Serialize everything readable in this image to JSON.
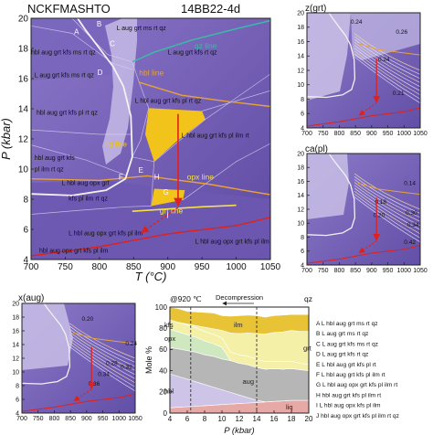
{
  "figure": {
    "system": "NCKFMASHTO",
    "sample": "14BB22-4d"
  },
  "colors": {
    "field_dark": "#6b57b0",
    "field_mid": "#7d68bf",
    "field_light": "#9b8bd0",
    "field_pale": "#c9bfe6",
    "liq_gold": "#f2c31a",
    "qz_line": "#3fb7a6",
    "hbl_line": "#e8a23a",
    "grt_line": "#f4e14a",
    "red": "#e0211b",
    "white_line": "#f2f2f2"
  },
  "chart_data": [
    {
      "type": "area",
      "name": "main",
      "xlabel": "T (°C)",
      "ylabel": "P (kbar)",
      "xlim": [
        700,
        1050
      ],
      "ylim": [
        4,
        20
      ],
      "xticks": [
        "700",
        "750",
        "800",
        "850",
        "900",
        "950",
        "1000",
        "1050"
      ],
      "yticks": [
        "4",
        "6",
        "8",
        "10",
        "12",
        "14",
        "16",
        "18",
        "20"
      ],
      "field_labels": [
        {
          "text": "A",
          "T": 763,
          "P": 18.95
        },
        {
          "text": "B",
          "T": 796,
          "P": 19.45
        },
        {
          "text": "C",
          "T": 815,
          "P": 18.15
        },
        {
          "text": "D",
          "T": 797,
          "P": 16.25
        },
        {
          "text": "E",
          "T": 857,
          "P": 9.75
        },
        {
          "text": "F",
          "T": 828,
          "P": 9.3
        },
        {
          "text": "H",
          "T": 880,
          "P": 9.3
        },
        {
          "text": "G",
          "T": 893,
          "P": 8.3
        },
        {
          "text": "I",
          "T": 898,
          "P": 6.75
        },
        {
          "text": "L aug grt ms rt qz",
          "T": 825,
          "P": 19.2
        },
        {
          "text": "hbl aug grt kfs ms rt qz",
          "T": 700,
          "P": 17.6
        },
        {
          "text": "L aug grt kfs ms rt qz",
          "T": 705,
          "P": 16.1
        },
        {
          "text": "L aug grt kfs rt qz",
          "T": 900,
          "P": 17.6
        },
        {
          "text": "L hbl aug grt kfs pl rt qz",
          "T": 852,
          "P": 14.4
        },
        {
          "text": "hbl aug grt kfs pl rt qz",
          "T": 708,
          "P": 13.6
        },
        {
          "text": "L hbl aug grt kfs pl ilm rt",
          "T": 920,
          "P": 12.1
        },
        {
          "text": "hbl aug grt kfs",
          "T": 705,
          "P": 10.6
        },
        {
          "text": "pl ilm rt qz",
          "T": 705,
          "P": 9.85
        },
        {
          "text": "L hbl aug opx grt",
          "T": 745,
          "P": 8.95
        },
        {
          "text": "kfs pl ilm rt qz",
          "T": 755,
          "P": 7.9
        },
        {
          "text": "L hbl aug opx grt kfs pl ilm",
          "T": 755,
          "P": 5.6
        },
        {
          "text": "hbl aug opx grt kfs pl ilm",
          "T": 712,
          "P": 4.45
        },
        {
          "text": "L hbl aug opx grt kfs pl ilm",
          "T": 940,
          "P": 5.05
        }
      ],
      "line_labels": [
        {
          "text": "qz line",
          "T": 939,
          "P": 18.0
        },
        {
          "text": "hbl line",
          "T": 858,
          "P": 16.2
        },
        {
          "text": "liq line",
          "T": 808,
          "P": 11.5
        },
        {
          "text": "opx line",
          "T": 928,
          "P": 9.3
        },
        {
          "text": "grt line",
          "T": 888,
          "P": 7.05
        }
      ],
      "lines": {
        "qz": [
          [
            848,
            17.1
          ],
          [
            880,
            17.75
          ],
          [
            935,
            18.55
          ],
          [
            1000,
            19.3
          ],
          [
            1050,
            19.85
          ]
        ],
        "hbl": [
          [
            858,
            15.75
          ],
          [
            920,
            14.9
          ],
          [
            985,
            14.5
          ],
          [
            1050,
            14.15
          ]
        ],
        "opx": [
          [
            700,
            9.35
          ],
          [
            800,
            9.25
          ],
          [
            870,
            9.55
          ],
          [
            900,
            9.35
          ],
          [
            960,
            9.0
          ],
          [
            1010,
            8.6
          ],
          [
            1050,
            8.3
          ]
        ],
        "grt": [
          [
            848,
            7.2
          ],
          [
            900,
            7.35
          ],
          [
            950,
            7.5
          ],
          [
            1000,
            7.6
          ]
        ],
        "solidus": [
          [
            700,
            8.35
          ],
          [
            760,
            8.25
          ],
          [
            810,
            8.6
          ],
          [
            838,
            9.35
          ],
          [
            848,
            10.8
          ],
          [
            846,
            13.5
          ],
          [
            835,
            15.5
          ],
          [
            820,
            16.8
          ],
          [
            800,
            18.0
          ],
          [
            780,
            19.2
          ],
          [
            768,
            20.0
          ]
        ],
        "red_field_edge": [
          [
            700,
            4.25
          ],
          [
            800,
            4.85
          ],
          [
            900,
            5.7
          ],
          [
            1000,
            6.25
          ],
          [
            1050,
            6.8
          ]
        ]
      },
      "liq_region": [
        [
          872,
          14.05
        ],
        [
          950,
          13.85
        ],
        [
          955,
          13.3
        ],
        [
          912,
          11.8
        ],
        [
          880,
          10.5
        ],
        [
          867,
          12.3
        ]
      ],
      "liq_region_low": [
        [
          876,
          7.55
        ],
        [
          922,
          7.95
        ],
        [
          925,
          8.6
        ],
        [
          880,
          8.7
        ]
      ],
      "path": {
        "solid": [
          [
            915,
            13.65
          ],
          [
            915,
            7.6
          ]
        ],
        "dashed": [
          [
            915,
            7.45
          ],
          [
            862,
            5.8
          ]
        ],
        "label": "decompression"
      }
    },
    {
      "type": "heatmap",
      "name": "z(grt)",
      "title": "z(grt)",
      "xlim": [
        700,
        1050
      ],
      "ylim": [
        4,
        20
      ],
      "xticks": [
        "700",
        "750",
        "800",
        "850",
        "900",
        "950",
        "1000",
        "1050"
      ],
      "yticks": [
        "4",
        "6",
        "8",
        "10",
        "12",
        "14",
        "16",
        "18",
        "20"
      ],
      "contour_labels": [
        "0.26",
        "0.24",
        "0.24",
        "0.21"
      ],
      "contour_label_positions": [
        [
          975,
          17.1
        ],
        [
          920,
          13.3
        ],
        [
          835,
          18.5
        ],
        [
          965,
          8.6
        ]
      ]
    },
    {
      "type": "heatmap",
      "name": "ca(pl)",
      "title": "ca(pl)",
      "xlim": [
        700,
        1050
      ],
      "ylim": [
        4,
        20
      ],
      "xticks": [
        "700",
        "750",
        "800",
        "850",
        "900",
        "950",
        "1000",
        "1050"
      ],
      "yticks": [
        "4",
        "6",
        "8",
        "10",
        "12",
        "14",
        "16",
        "18",
        "20"
      ],
      "contour_labels": [
        "0.14",
        "0.18",
        "0.20",
        "0.30",
        "0.34",
        "0.42"
      ],
      "contour_label_positions": [
        [
          1000,
          15.5
        ],
        [
          910,
          12.8
        ],
        [
          905,
          10.9
        ],
        [
          1005,
          11.2
        ],
        [
          1010,
          9.5
        ],
        [
          1000,
          7.0
        ]
      ]
    },
    {
      "type": "heatmap",
      "name": "x(aug)",
      "title": "x(aug)",
      "xlim": [
        700,
        1050
      ],
      "ylim": [
        4,
        20
      ],
      "xticks": [
        "700",
        "750",
        "800",
        "850",
        "900",
        "950",
        "1000",
        "1050"
      ],
      "yticks": [
        "4",
        "6",
        "8",
        "10",
        "12",
        "14",
        "16",
        "18",
        "20"
      ],
      "contour_labels": [
        "0.20",
        "0.24",
        "0.28",
        "0.32",
        "0.34",
        "0.36"
      ],
      "contour_label_positions": [
        [
          885,
          17.5
        ],
        [
          1020,
          13.9
        ],
        [
          960,
          11.0
        ],
        [
          1005,
          10.5
        ],
        [
          935,
          9.4
        ],
        [
          905,
          8.0
        ]
      ]
    },
    {
      "type": "area",
      "name": "modes",
      "title": "@920 ℃",
      "subtitle": "Decompression",
      "xlabel": "P (kbar)",
      "ylabel": "Mole %",
      "xlim": [
        4,
        20
      ],
      "ylim": [
        0,
        100
      ],
      "xticks": [
        "4",
        "6",
        "8",
        "10",
        "12",
        "14",
        "16",
        "18",
        "20"
      ],
      "yticks": [
        "0",
        "20",
        "40",
        "60",
        "80",
        "100"
      ],
      "P": [
        4,
        5,
        6,
        7,
        8,
        9,
        10,
        11,
        12,
        13,
        14,
        15,
        16,
        17,
        18,
        19,
        20
      ],
      "layers": [
        {
          "name": "liq",
          "values": [
            5,
            5.5,
            6,
            6.5,
            7,
            7.5,
            8,
            8.5,
            9,
            9.5,
            10,
            10.5,
            11,
            11.5,
            12,
            12,
            12
          ]
        },
        {
          "name": "hbl",
          "values": [
            32,
            29,
            26,
            23,
            20,
            17,
            14,
            11,
            8,
            5,
            2,
            0,
            0,
            0,
            0,
            0,
            0
          ]
        },
        {
          "name": "aug",
          "values": [
            25,
            26,
            27,
            28,
            28,
            29,
            29,
            30,
            30,
            31,
            31,
            31,
            31,
            30,
            30,
            29,
            28
          ]
        },
        {
          "name": "opx",
          "values": [
            17,
            16,
            15,
            14,
            13,
            12,
            11,
            0,
            0,
            0,
            0,
            0,
            0,
            0,
            0,
            0,
            0
          ]
        },
        {
          "name": "kfs",
          "values": [
            9,
            9,
            9,
            9,
            9,
            9,
            9,
            8,
            8,
            8,
            8,
            7,
            7,
            7,
            7,
            6,
            6
          ]
        },
        {
          "name": "grt",
          "values": [
            0,
            0,
            1,
            2,
            4,
            5,
            7,
            18,
            20,
            22,
            24,
            26,
            27,
            28,
            29,
            30,
            31
          ]
        },
        {
          "name": "ilm",
          "values": [
            12,
            13,
            12,
            13,
            14,
            15,
            14,
            16,
            17,
            17,
            17,
            16,
            16,
            16,
            15,
            16,
            16
          ]
        },
        {
          "name": "rt",
          "values": [
            0,
            0,
            0,
            0,
            0,
            0,
            0,
            0,
            0,
            0,
            0,
            0,
            0,
            0,
            0,
            0,
            0
          ]
        }
      ],
      "layer_colors": {
        "liq": "#e7a9a5",
        "hbl": "#cdc4e8",
        "aug": "#b6b6b6",
        "opx": "#cfe8c0",
        "kfs": "#f4f0a8",
        "grt": "#f4f0a8",
        "ilm": "#e8c335",
        "rt": "#ffffff"
      },
      "markers": [
        {
          "P": 6.4,
          "style": "dashed"
        },
        {
          "P": 14.0,
          "style": "dashed"
        }
      ],
      "top_labels": [
        "qz"
      ]
    }
  ],
  "legend": {
    "items": [
      "A  L hbl aug grt ms rt qz",
      "B  L aug grt ms rt qz",
      "C  L aug grt kfs ms rt qz",
      "D  L aug grt kfs rt qz",
      "E  L hbl aug grt kfs pl rt",
      "F  L hbl aug grt kfs pl ilm rt",
      "G  L hbl aug opx grt kfs pl ilm rt",
      "H  hbl aug grt kfs pl ilm rt",
      "I   L hbl aug opx kfs pl ilm",
      "J   hbl aug opx grt kfs pl ilm rt qz"
    ]
  }
}
